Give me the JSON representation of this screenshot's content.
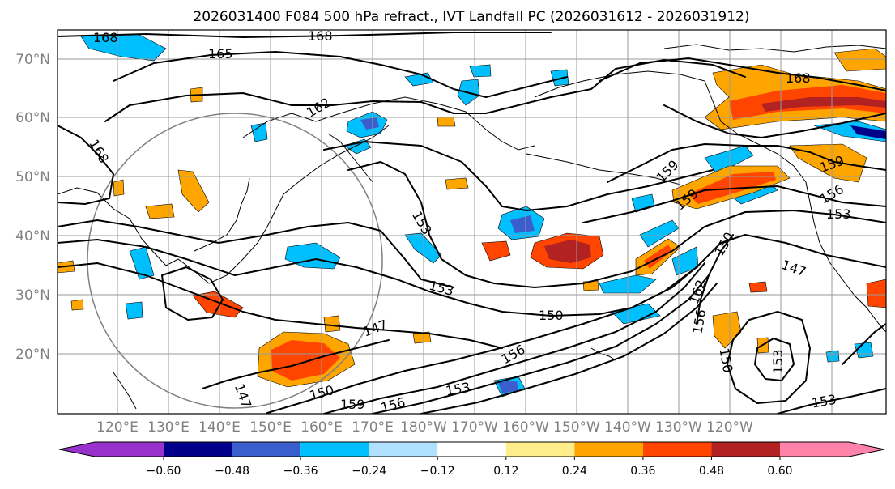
{
  "title": "2026031400 F084 500 hPa refract., IVT Landfall PC (2026031612 - 2026031912)",
  "lat_labels": [
    "70°N",
    "60°N",
    "50°N",
    "40°N",
    "30°N",
    "20°N"
  ],
  "lon_labels": [
    "120°E",
    "130°E",
    "140°E",
    "150°E",
    "160°E",
    "170°E",
    "180°W",
    "170°W",
    "160°W",
    "150°W",
    "140°W",
    "130°W",
    "120°W"
  ],
  "contour_labels": [
    "168",
    "168",
    "165",
    "168",
    "162",
    "168",
    "159",
    "159",
    "159",
    "156",
    "153",
    "153",
    "153",
    "150",
    "147",
    "150",
    "147",
    "150",
    "159",
    "156",
    "153",
    "156",
    "162",
    "156",
    "150",
    "153",
    "153",
    "147"
  ],
  "colorbar": {
    "colors": [
      "#9932cc",
      "#00008b",
      "#3a5fcd",
      "#00bfff",
      "#b0e2ff",
      "#ffffff",
      "#ffec8b",
      "#ffa500",
      "#ff4500",
      "#b22222",
      "#ff82ab"
    ],
    "tick_labels": [
      "−0.60",
      "−0.48",
      "−0.36",
      "−0.24",
      "−0.12",
      "0.12",
      "0.24",
      "0.36",
      "0.48",
      "0.60"
    ]
  }
}
